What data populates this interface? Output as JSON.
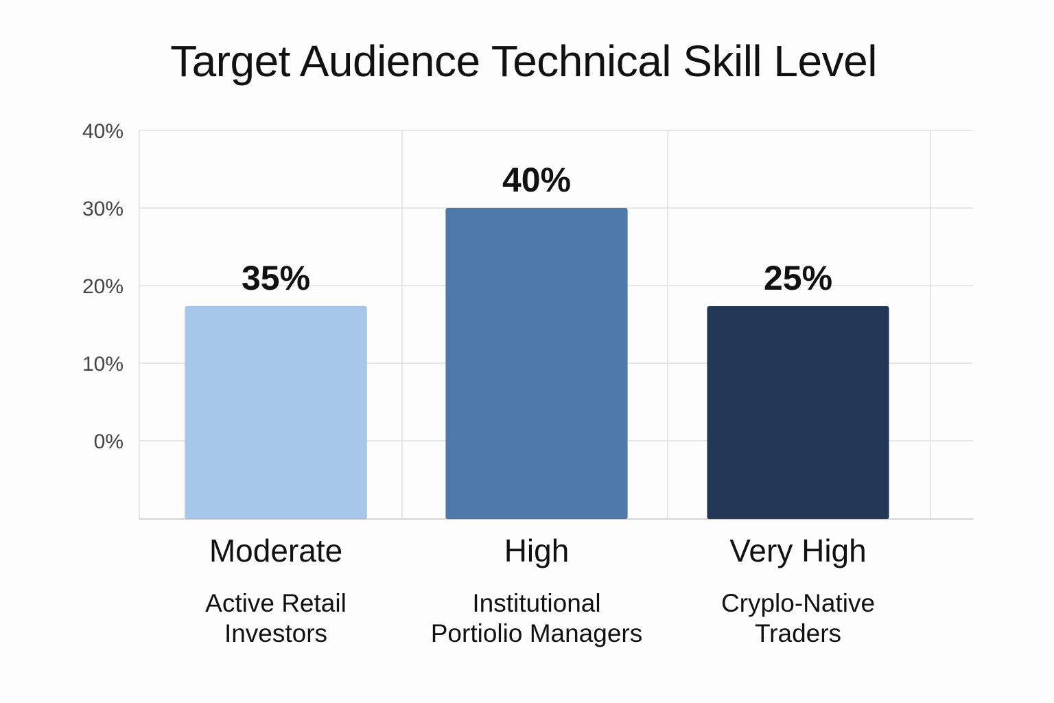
{
  "chart_data": {
    "type": "bar",
    "title": "Target Audience Technical Skill Level",
    "xlabel": "",
    "ylabel": "",
    "y_ticks": [
      "0%",
      "10%",
      "20%",
      "30%",
      "40%"
    ],
    "categories": [
      "Moderate",
      "High",
      "Very High"
    ],
    "audiences": [
      [
        "Active Retail",
        "Investors"
      ],
      [
        "Institutional",
        "Portiolio Managers"
      ],
      [
        "Cryplo-Native",
        "Traders"
      ]
    ],
    "value_labels": [
      "35%",
      "40%",
      "25%"
    ],
    "values": [
      35,
      40,
      25
    ],
    "colors": [
      "#a7c7ea",
      "#5079ab",
      "#253756"
    ],
    "grid": true,
    "legend": "none"
  }
}
